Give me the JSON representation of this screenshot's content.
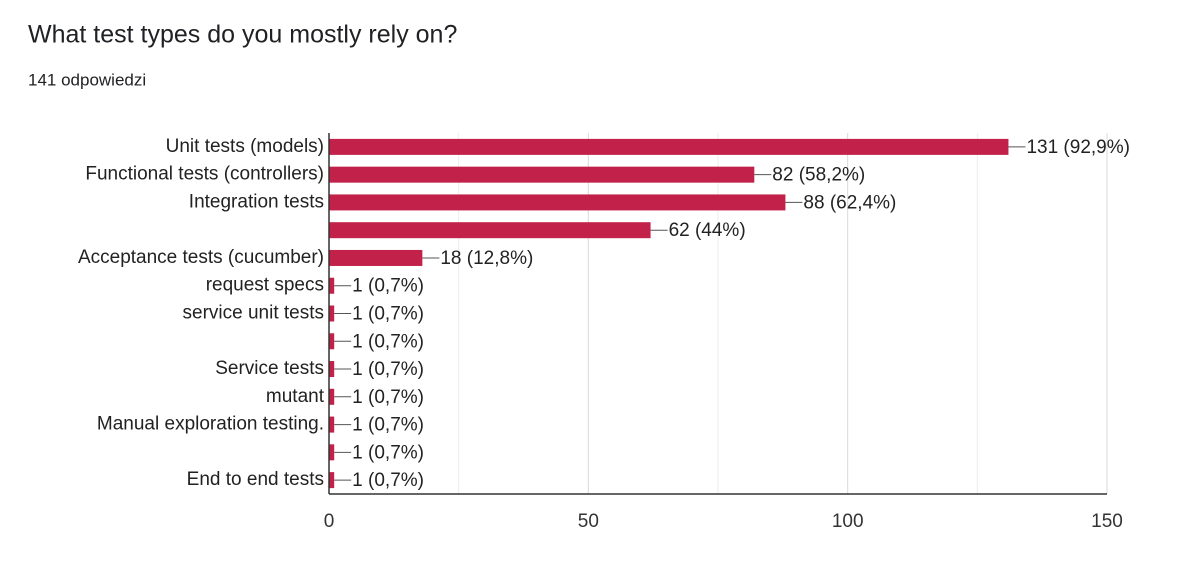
{
  "chart_data": {
    "type": "bar",
    "orientation": "horizontal",
    "title": "What test types do you mostly rely on?",
    "subtitle": "141 odpowiedzi",
    "categories": [
      "Unit tests (models)",
      "Functional tests (controllers)",
      "Integration tests",
      null,
      "Acceptance tests (cucumber)",
      "request specs",
      "service unit tests",
      null,
      "Service tests",
      "mutant",
      "Manual exploration testing.",
      null,
      "End to end tests"
    ],
    "values": [
      131,
      82,
      88,
      62,
      18,
      1,
      1,
      1,
      1,
      1,
      1,
      1,
      1
    ],
    "value_labels": [
      "131 (92,9%)",
      "82 (58,2%)",
      "88 (62,4%)",
      "62 (44%)",
      "18 (12,8%)",
      "1 (0,7%)",
      "1 (0,7%)",
      "1 (0,7%)",
      "1 (0,7%)",
      "1 (0,7%)",
      "1 (0,7%)",
      "1 (0,7%)",
      "1 (0,7%)"
    ],
    "color": "#c2224a",
    "xlim": [
      0,
      150
    ],
    "xticks": [
      0,
      50,
      100,
      150
    ],
    "minor_gridlines": [
      25,
      75,
      125
    ],
    "grid": true
  }
}
